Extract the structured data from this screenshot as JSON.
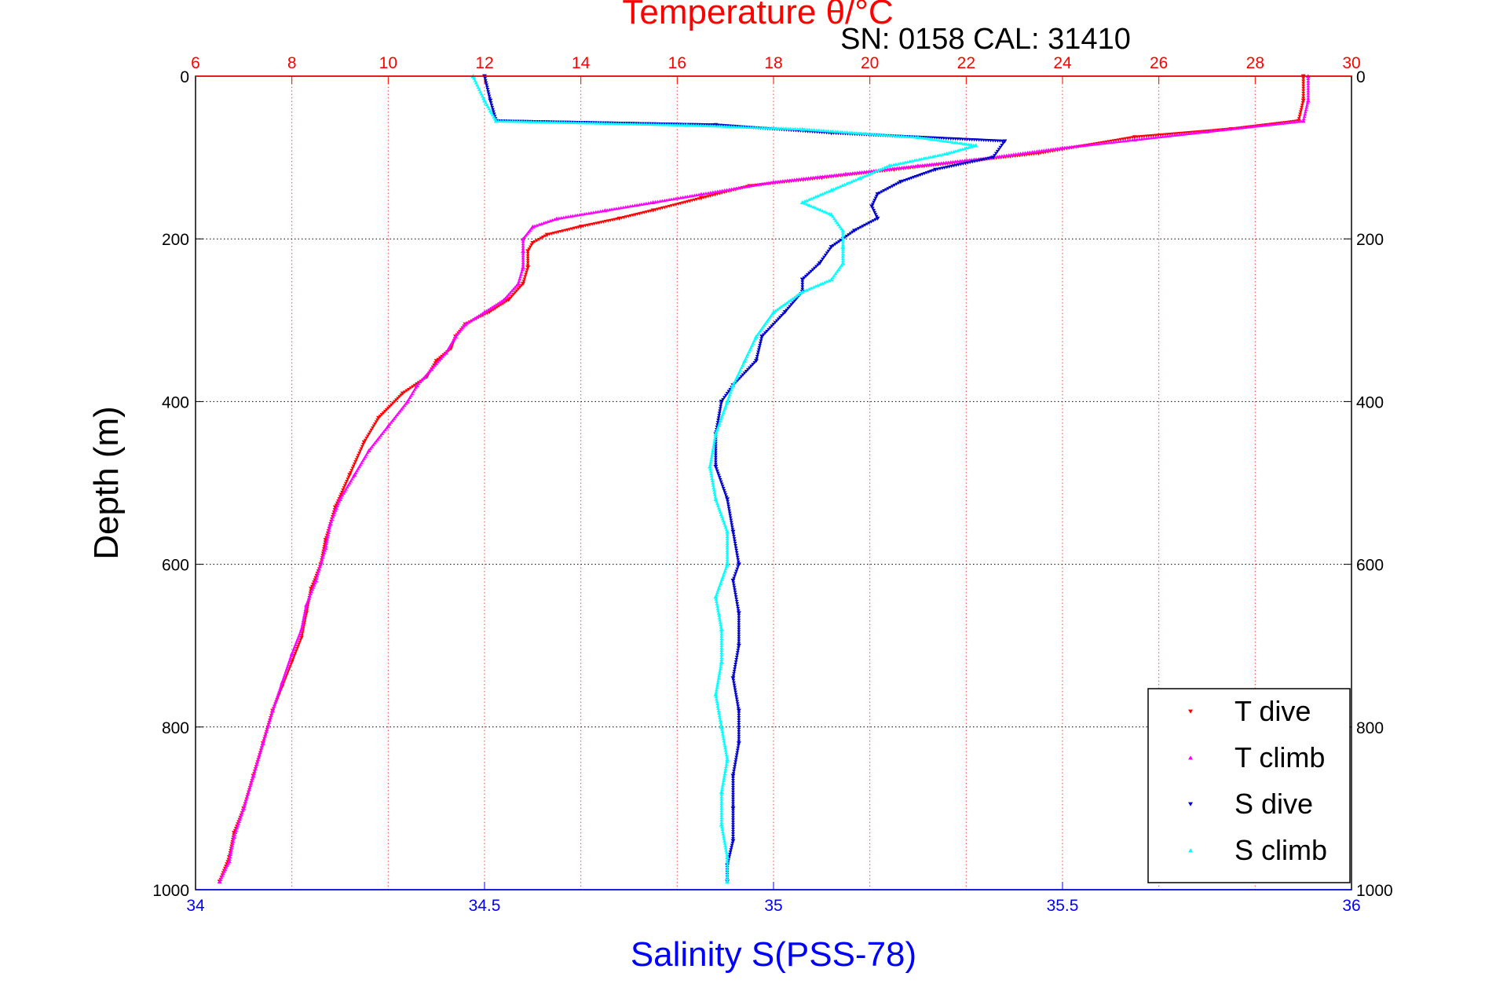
{
  "chart_data": {
    "type": "scatter",
    "title": "Temperature θ/°C",
    "subtitle": "SN: 0158  CAL: 31410",
    "xlabel": "Salinity S(PSS-78)",
    "ylabel": "Depth (m)",
    "x_bottom": {
      "label": "Salinity S(PSS-78)",
      "range": [
        34,
        36
      ],
      "ticks": [
        "34",
        "34.5",
        "35",
        "35.5",
        "36"
      ],
      "color": "#0000ff"
    },
    "x_top": {
      "label": "Temperature θ/°C",
      "range": [
        6,
        30
      ],
      "ticks": [
        "6",
        "8",
        "10",
        "12",
        "14",
        "16",
        "18",
        "20",
        "22",
        "24",
        "26",
        "28",
        "30"
      ],
      "color": "#ff0000"
    },
    "y": {
      "label": "Depth (m)",
      "range": [
        0,
        1000
      ],
      "reversed": true,
      "ticks": [
        "0",
        "200",
        "400",
        "600",
        "800",
        "1000"
      ]
    },
    "grid": true,
    "legend_position": "bottom-right",
    "series": [
      {
        "name": "T dive",
        "axis": "temperature",
        "color": "#ff0000",
        "marker": "triangle-down",
        "points": [
          [
            29.0,
            0
          ],
          [
            29.0,
            30
          ],
          [
            28.9,
            55
          ],
          [
            27.5,
            65
          ],
          [
            25.5,
            75
          ],
          [
            23.5,
            95
          ],
          [
            22.0,
            105
          ],
          [
            20.5,
            115
          ],
          [
            19.0,
            125
          ],
          [
            17.5,
            135
          ],
          [
            16.5,
            150
          ],
          [
            15.5,
            165
          ],
          [
            14.8,
            175
          ],
          [
            14.0,
            185
          ],
          [
            13.3,
            195
          ],
          [
            13.0,
            205
          ],
          [
            12.9,
            215
          ],
          [
            12.9,
            235
          ],
          [
            12.8,
            255
          ],
          [
            12.5,
            275
          ],
          [
            12.1,
            290
          ],
          [
            11.6,
            305
          ],
          [
            11.4,
            320
          ],
          [
            11.3,
            335
          ],
          [
            11.0,
            350
          ],
          [
            10.8,
            370
          ],
          [
            10.3,
            390
          ],
          [
            9.8,
            420
          ],
          [
            9.5,
            450
          ],
          [
            9.2,
            490
          ],
          [
            8.9,
            530
          ],
          [
            8.7,
            570
          ],
          [
            8.6,
            600
          ],
          [
            8.4,
            630
          ],
          [
            8.3,
            660
          ],
          [
            8.2,
            690
          ],
          [
            8.0,
            720
          ],
          [
            7.8,
            750
          ],
          [
            7.6,
            780
          ],
          [
            7.4,
            820
          ],
          [
            7.2,
            860
          ],
          [
            7.0,
            900
          ],
          [
            6.8,
            930
          ],
          [
            6.7,
            960
          ],
          [
            6.5,
            990
          ]
        ]
      },
      {
        "name": "T climb",
        "axis": "temperature",
        "color": "#ff00ff",
        "marker": "triangle-up",
        "points": [
          [
            29.1,
            0
          ],
          [
            29.1,
            30
          ],
          [
            29.0,
            55
          ],
          [
            27.0,
            68
          ],
          [
            25.5,
            78
          ],
          [
            24.0,
            88
          ],
          [
            22.5,
            100
          ],
          [
            21.0,
            110
          ],
          [
            19.5,
            120
          ],
          [
            18.0,
            130
          ],
          [
            16.5,
            145
          ],
          [
            15.5,
            155
          ],
          [
            14.5,
            165
          ],
          [
            13.5,
            175
          ],
          [
            13.0,
            185
          ],
          [
            12.8,
            200
          ],
          [
            12.8,
            215
          ],
          [
            12.8,
            235
          ],
          [
            12.7,
            255
          ],
          [
            12.4,
            275
          ],
          [
            12.0,
            290
          ],
          [
            11.6,
            305
          ],
          [
            11.4,
            320
          ],
          [
            11.2,
            340
          ],
          [
            10.9,
            360
          ],
          [
            10.6,
            380
          ],
          [
            10.4,
            400
          ],
          [
            10.0,
            430
          ],
          [
            9.6,
            460
          ],
          [
            9.3,
            490
          ],
          [
            9.0,
            520
          ],
          [
            8.8,
            550
          ],
          [
            8.7,
            580
          ],
          [
            8.5,
            620
          ],
          [
            8.3,
            650
          ],
          [
            8.2,
            680
          ],
          [
            8.0,
            710
          ],
          [
            7.8,
            745
          ],
          [
            7.6,
            780
          ],
          [
            7.4,
            820
          ],
          [
            7.2,
            860
          ],
          [
            7.0,
            900
          ],
          [
            6.8,
            935
          ],
          [
            6.7,
            965
          ],
          [
            6.5,
            990
          ]
        ]
      },
      {
        "name": "S dive",
        "axis": "salinity",
        "color": "#0000cd",
        "marker": "triangle-down",
        "points": [
          [
            34.5,
            0
          ],
          [
            34.51,
            30
          ],
          [
            34.52,
            55
          ],
          [
            34.9,
            60
          ],
          [
            35.1,
            70
          ],
          [
            35.4,
            80
          ],
          [
            35.38,
            100
          ],
          [
            35.28,
            115
          ],
          [
            35.22,
            130
          ],
          [
            35.18,
            145
          ],
          [
            35.17,
            160
          ],
          [
            35.18,
            175
          ],
          [
            35.14,
            190
          ],
          [
            35.1,
            210
          ],
          [
            35.08,
            230
          ],
          [
            35.05,
            250
          ],
          [
            35.05,
            265
          ],
          [
            35.02,
            290
          ],
          [
            34.98,
            320
          ],
          [
            34.97,
            350
          ],
          [
            34.93,
            380
          ],
          [
            34.91,
            400
          ],
          [
            34.9,
            440
          ],
          [
            34.9,
            480
          ],
          [
            34.92,
            520
          ],
          [
            34.93,
            560
          ],
          [
            34.94,
            600
          ],
          [
            34.93,
            620
          ],
          [
            34.94,
            660
          ],
          [
            34.94,
            700
          ],
          [
            34.93,
            740
          ],
          [
            34.94,
            780
          ],
          [
            34.94,
            820
          ],
          [
            34.93,
            860
          ],
          [
            34.93,
            900
          ],
          [
            34.93,
            940
          ],
          [
            34.92,
            970
          ],
          [
            34.92,
            990
          ]
        ]
      },
      {
        "name": "S climb",
        "axis": "salinity",
        "color": "#00ffff",
        "marker": "triangle-up",
        "points": [
          [
            34.48,
            0
          ],
          [
            34.5,
            30
          ],
          [
            34.52,
            55
          ],
          [
            34.85,
            60
          ],
          [
            35.05,
            65
          ],
          [
            35.25,
            75
          ],
          [
            35.35,
            85
          ],
          [
            35.3,
            95
          ],
          [
            35.2,
            110
          ],
          [
            35.15,
            125
          ],
          [
            35.1,
            140
          ],
          [
            35.05,
            155
          ],
          [
            35.1,
            170
          ],
          [
            35.12,
            190
          ],
          [
            35.12,
            210
          ],
          [
            35.12,
            230
          ],
          [
            35.1,
            250
          ],
          [
            35.05,
            265
          ],
          [
            35.0,
            290
          ],
          [
            34.97,
            320
          ],
          [
            34.95,
            350
          ],
          [
            34.93,
            380
          ],
          [
            34.92,
            400
          ],
          [
            34.9,
            440
          ],
          [
            34.89,
            480
          ],
          [
            34.9,
            520
          ],
          [
            34.92,
            560
          ],
          [
            34.92,
            600
          ],
          [
            34.9,
            640
          ],
          [
            34.91,
            680
          ],
          [
            34.91,
            720
          ],
          [
            34.9,
            760
          ],
          [
            34.91,
            800
          ],
          [
            34.92,
            840
          ],
          [
            34.91,
            880
          ],
          [
            34.91,
            920
          ],
          [
            34.92,
            960
          ],
          [
            34.92,
            990
          ]
        ]
      }
    ]
  }
}
